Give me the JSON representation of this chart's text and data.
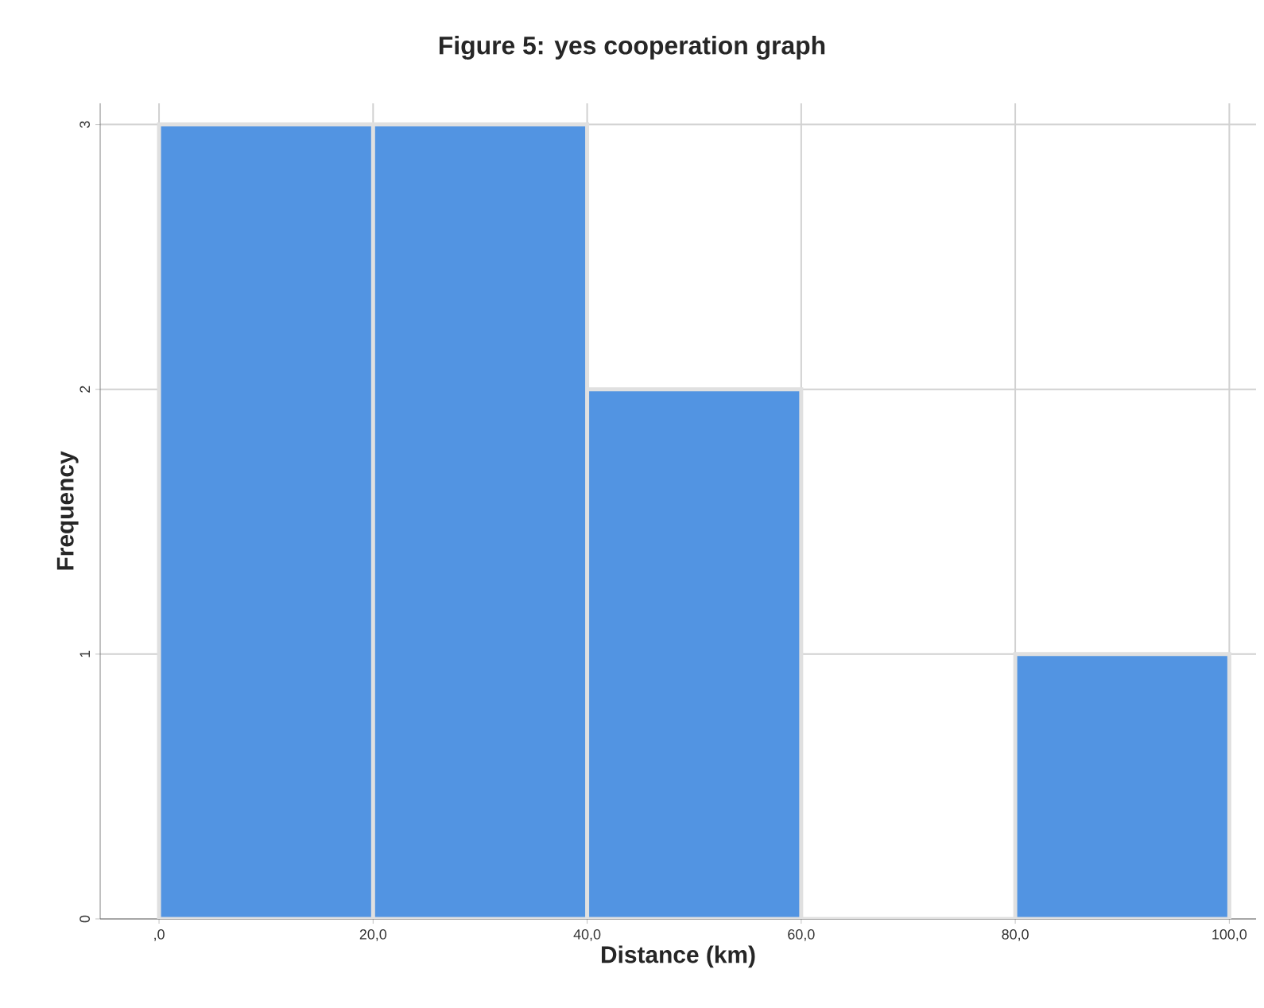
{
  "chart_data": {
    "type": "histogram",
    "title": "Figure 5: yes cooperation graph",
    "xlabel": "Distance (km)",
    "ylabel": "Frequency",
    "bins": [
      0,
      20,
      40,
      60,
      80,
      100
    ],
    "values": [
      3,
      3,
      2,
      0,
      1
    ],
    "color": "#5294e2",
    "xlim": [
      -5.5,
      102.5
    ],
    "ylim": [
      0,
      3.08
    ],
    "xticks": [
      {
        "value": 0,
        "label": ",0"
      },
      {
        "value": 20,
        "label": "20,0"
      },
      {
        "value": 40,
        "label": "40,0"
      },
      {
        "value": 60,
        "label": "60,0"
      },
      {
        "value": 80,
        "label": "80,0"
      },
      {
        "value": 100,
        "label": "100,0"
      }
    ],
    "yticks": [
      0,
      1,
      2,
      3
    ],
    "grid": true
  }
}
